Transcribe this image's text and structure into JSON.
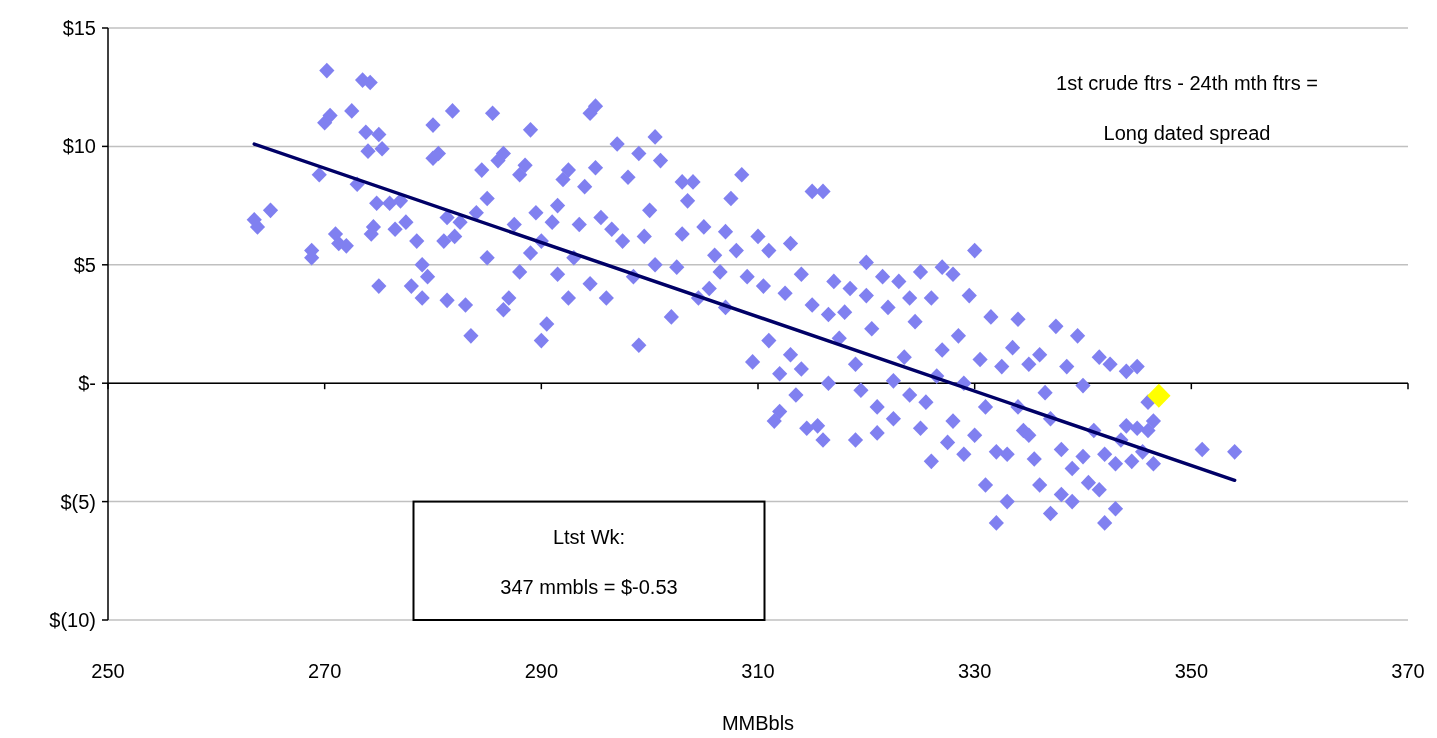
{
  "chart_data": {
    "type": "scatter",
    "xlabel": "MMBbls",
    "xlim": [
      250,
      370
    ],
    "xticks": [
      250,
      270,
      290,
      310,
      330,
      350,
      370
    ],
    "ylim": [
      -10,
      15
    ],
    "yticks": [
      {
        "value": -10,
        "label": "$(10)"
      },
      {
        "value": -5,
        "label": "$(5)"
      },
      {
        "value": 0,
        "label": "$-"
      },
      {
        "value": 5,
        "label": "$5"
      },
      {
        "value": 10,
        "label": "$10"
      },
      {
        "value": 15,
        "label": "$15"
      }
    ],
    "grid": "y",
    "marker": "diamond",
    "annotations": [
      "1st crude ftrs - 24th mth ftrs =",
      "Long dated spread",
      "Ltst Wk:",
      "347 mmbls = $-0.53"
    ],
    "series": [
      {
        "color": "#8080f0",
        "x": [
          263.5,
          263.8,
          265,
          268.8,
          268.8,
          269.5,
          270,
          270.2,
          270.5,
          271,
          271.3,
          272,
          272.5,
          273,
          273.5,
          273.8,
          274,
          274.2,
          274.3,
          274.5,
          274.8,
          275,
          275.3,
          275,
          276,
          276.5,
          277,
          277.5,
          278,
          278.5,
          279,
          279,
          279.5,
          280,
          280,
          280.5,
          281,
          281.3,
          281.3,
          281.8,
          282,
          282.5,
          283,
          283.5,
          284,
          284.5,
          285,
          285,
          285.5,
          286,
          286.5,
          286.5,
          287,
          287.5,
          288,
          288,
          288.5,
          289,
          289,
          289.5,
          290,
          290,
          290.5,
          291,
          291.5,
          291.5,
          292,
          292.5,
          292.5,
          293,
          293.5,
          294,
          294.5,
          294.5,
          295,
          295,
          295.5,
          296,
          296.5,
          297,
          297.5,
          298,
          298.5,
          299,
          299,
          299.5,
          300,
          300.5,
          300.5,
          301,
          302,
          302.5,
          303,
          303,
          303.5,
          304,
          304.5,
          305,
          305.5,
          306,
          306.5,
          307,
          307,
          307.5,
          308,
          308.5,
          309,
          309.5,
          310,
          310.5,
          311,
          311,
          311.5,
          312,
          312,
          312.5,
          313,
          313,
          313.5,
          314,
          314,
          314.5,
          315,
          315,
          315.5,
          316,
          316,
          316.5,
          316.5,
          317,
          317.5,
          318,
          318.5,
          319,
          319,
          319.5,
          320,
          320,
          320.5,
          321,
          321,
          321.5,
          322,
          322.5,
          322.5,
          323,
          323.5,
          324,
          324,
          324.5,
          325,
          325,
          325.5,
          326,
          326,
          326.5,
          327,
          327,
          327.5,
          328,
          328,
          328.5,
          329,
          329,
          329.5,
          330,
          330,
          330.5,
          331,
          331,
          331.5,
          332,
          332,
          332.5,
          333,
          333,
          333.5,
          334,
          334,
          334.5,
          335,
          335,
          335.5,
          336,
          336,
          336.5,
          337,
          337,
          337.5,
          338,
          338,
          338.5,
          339,
          339,
          339.5,
          340,
          340,
          340.5,
          341,
          341.5,
          341.5,
          342,
          342,
          342.5,
          343,
          343,
          343.5,
          344,
          344,
          344.5,
          345,
          345,
          345.5,
          346,
          346,
          346.5,
          346.5,
          351,
          354
        ],
        "values": [
          6.9,
          6.6,
          7.3,
          5.6,
          5.3,
          8.8,
          11.0,
          13.2,
          11.3,
          6.3,
          5.9,
          5.8,
          11.5,
          8.4,
          12.8,
          10.6,
          9.8,
          12.7,
          6.3,
          6.6,
          7.6,
          10.5,
          9.9,
          4.1,
          7.6,
          6.5,
          7.7,
          6.8,
          4.1,
          6.0,
          5.0,
          3.6,
          4.5,
          9.5,
          10.9,
          9.7,
          6.0,
          7.0,
          3.5,
          11.5,
          6.2,
          6.8,
          3.3,
          2.0,
          7.2,
          9.0,
          5.3,
          7.8,
          11.4,
          9.4,
          9.7,
          3.1,
          3.6,
          6.7,
          4.7,
          8.8,
          9.2,
          5.5,
          10.7,
          7.2,
          6.0,
          1.8,
          2.5,
          6.8,
          4.6,
          7.5,
          8.6,
          3.6,
          9.0,
          5.3,
          6.7,
          8.3,
          11.4,
          4.2,
          11.7,
          9.1,
          7.0,
          3.6,
          6.5,
          10.1,
          6.0,
          8.7,
          4.5,
          9.7,
          1.6,
          6.2,
          7.3,
          10.4,
          5.0,
          9.4,
          2.8,
          4.9,
          8.5,
          6.3,
          7.7,
          8.5,
          3.6,
          6.6,
          4.0,
          5.4,
          4.7,
          3.2,
          6.4,
          7.8,
          5.6,
          8.8,
          4.5,
          0.9,
          6.2,
          4.1,
          5.6,
          1.8,
          -1.6,
          0.4,
          -1.2,
          3.8,
          5.9,
          1.2,
          -0.5,
          0.6,
          4.6,
          -1.9,
          8.1,
          3.3,
          -1.8,
          8.1,
          -2.4,
          2.9,
          0.0,
          4.3,
          1.9,
          3.0,
          4.0,
          -2.4,
          0.8,
          -0.3,
          3.7,
          5.1,
          2.3,
          -2.1,
          -1.0,
          4.5,
          3.2,
          0.1,
          -1.5,
          4.3,
          1.1,
          -0.5,
          3.6,
          2.6,
          -1.9,
          4.7,
          -0.8,
          3.6,
          -3.3,
          0.3,
          1.4,
          4.9,
          -2.5,
          4.6,
          -1.6,
          2.0,
          -3.0,
          0.0,
          3.7,
          5.6,
          -2.2,
          1.0,
          -4.3,
          -1.0,
          2.8,
          -5.9,
          -2.9,
          0.7,
          -3.0,
          -5.0,
          1.5,
          2.7,
          -1.0,
          -2.0,
          -2.2,
          0.8,
          -3.2,
          -4.3,
          1.2,
          -0.4,
          -5.5,
          -1.5,
          2.4,
          -4.7,
          -2.8,
          0.7,
          -3.6,
          -5.0,
          2.0,
          -3.1,
          -0.1,
          -4.2,
          -2.0,
          -4.5,
          1.1,
          -5.9,
          -3.0,
          0.8,
          -3.4,
          -5.3,
          -2.4,
          -1.8,
          0.5,
          -3.3,
          -1.9,
          0.7,
          -2.9,
          -2.0,
          -0.8,
          -3.4,
          -1.6,
          -2.8,
          -2.9
        ]
      },
      {
        "type": "line",
        "color": "#000066",
        "marker": "none",
        "x": [
          263.5,
          354
        ],
        "values": [
          10.1,
          -4.1
        ]
      },
      {
        "color": "#ffff00",
        "x": [
          347
        ],
        "values": [
          -0.53
        ]
      }
    ]
  }
}
